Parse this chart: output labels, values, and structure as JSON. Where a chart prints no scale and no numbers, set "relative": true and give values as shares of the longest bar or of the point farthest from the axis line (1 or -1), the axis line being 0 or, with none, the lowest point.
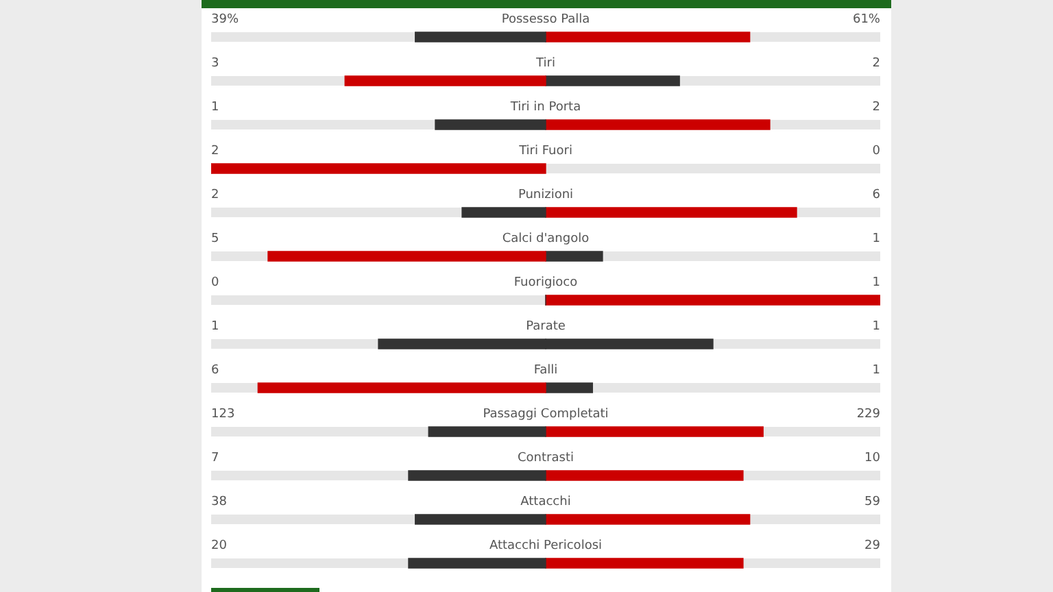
{
  "chart_data": {
    "type": "bar",
    "orientation": "horizontal",
    "stacked": true,
    "relative": true,
    "categories": [
      "Possesso Palla",
      "Tiri",
      "Tiri in Porta",
      "Tiri Fuori",
      "Punizioni",
      "Calci d'angolo",
      "Fuorigioco",
      "Parate",
      "Falli",
      "Passaggi Completati",
      "Contrasti",
      "Attacchi",
      "Attacchi Pericolosi"
    ],
    "series": [
      {
        "values": [
          -0.39,
          -0.6,
          -0.33,
          -1,
          -0.25,
          -0.83,
          0,
          -0.5,
          -0.86,
          -0.35,
          -0.41,
          -0.39,
          -0.41
        ],
        "colors": [
          "#333333",
          "#cc0000",
          "#333333",
          "#cc0000",
          "#333333",
          "#cc0000",
          "#333333",
          "#333333",
          "#cc0000",
          "#333333",
          "#333333",
          "#333333",
          "#333333"
        ]
      },
      {
        "values": [
          0.61,
          0.4,
          0.67,
          0,
          0.75,
          0.17,
          1,
          0.5,
          0.14,
          0.65,
          0.59,
          0.61,
          0.59
        ],
        "colors": [
          "#cc0000",
          "#333333",
          "#cc0000",
          "#333333",
          "#cc0000",
          "#333333",
          "#cc0000",
          "#333333",
          "#333333",
          "#cc0000",
          "#cc0000",
          "#cc0000",
          "#cc0000"
        ]
      }
    ],
    "annotations": [
      "39%",
      "61%",
      "3",
      "2",
      "1",
      "2",
      "2",
      "0",
      "2",
      "6",
      "5",
      "1",
      "0",
      "1",
      "1",
      "1",
      "6",
      "1",
      "123",
      "229",
      "7",
      "10",
      "38",
      "59",
      "20",
      "29"
    ]
  }
}
